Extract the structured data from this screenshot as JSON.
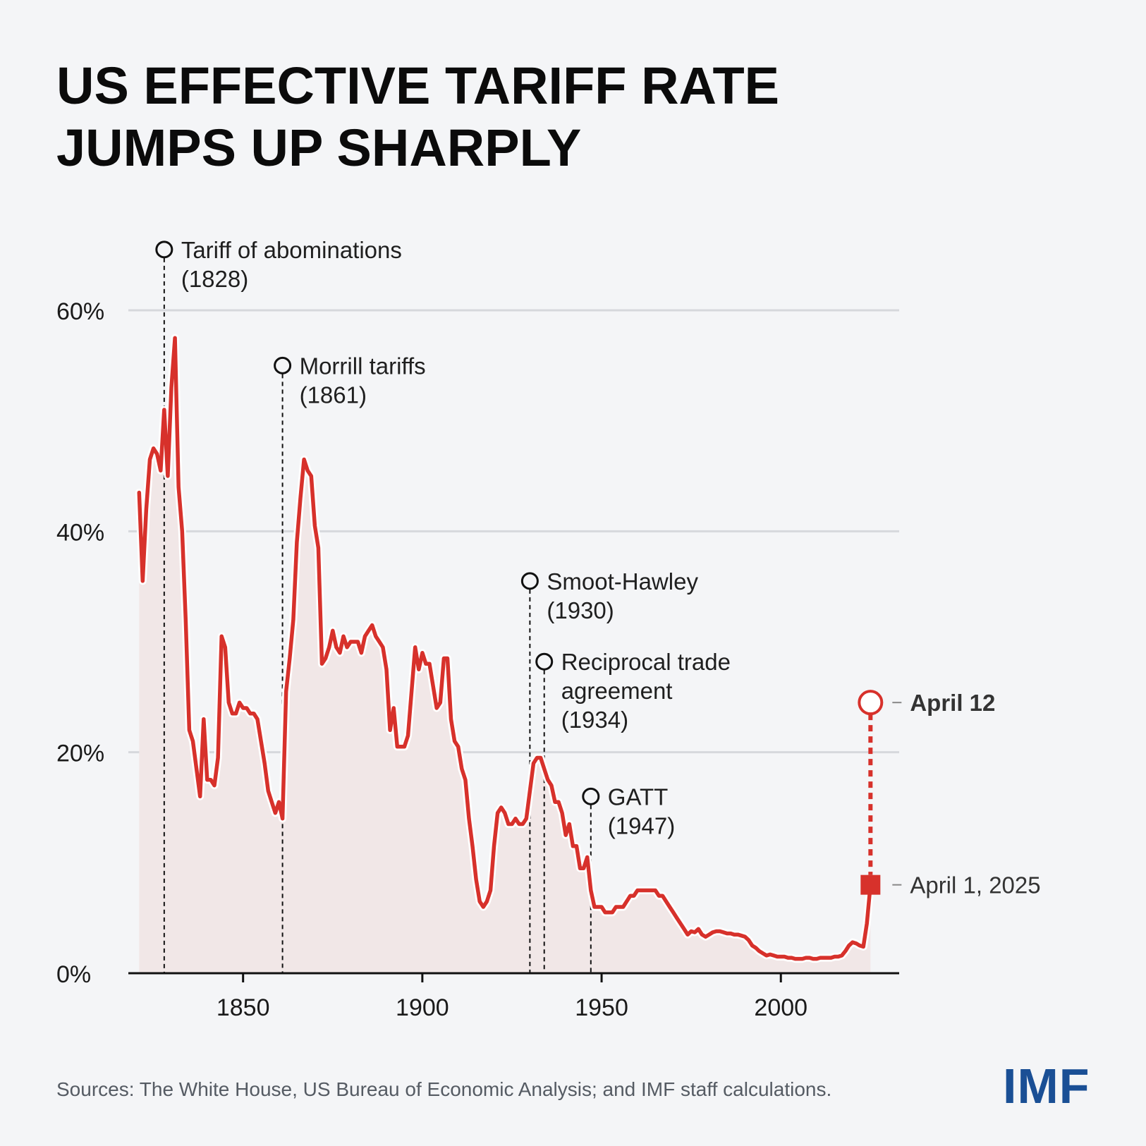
{
  "title_lines": [
    "US EFFECTIVE TARIFF RATE",
    "JUMPS UP SHARPLY"
  ],
  "source": "Sources: The White House, US Bureau of Economic Analysis; and IMF staff calculations.",
  "logo": "IMF",
  "colors": {
    "line": "#d7312b",
    "fill": "#f1e7e7",
    "grid": "#d6d8dc",
    "axis": "#111111",
    "logo": "#1a4f95"
  },
  "chart_data": {
    "type": "line",
    "title": "US EFFECTIVE TARIFF RATE JUMPS UP SHARPLY",
    "xlabel": "",
    "ylabel": "",
    "xlim": [
      1818,
      2033
    ],
    "ylim": [
      0,
      60
    ],
    "x_ticks": [
      1850,
      1900,
      1950,
      2000
    ],
    "y_ticks": [
      0,
      20,
      40,
      60
    ],
    "y_tick_labels": [
      "0%",
      "20%",
      "40%",
      "60%"
    ],
    "series": [
      {
        "name": "US effective tariff rate (%)",
        "points": [
          [
            1821,
            43.5
          ],
          [
            1822,
            35.5
          ],
          [
            1823,
            42.0
          ],
          [
            1824,
            46.5
          ],
          [
            1825,
            47.5
          ],
          [
            1826,
            47.0
          ],
          [
            1827,
            45.5
          ],
          [
            1828,
            51.0
          ],
          [
            1829,
            45.0
          ],
          [
            1830,
            53.0
          ],
          [
            1831,
            57.5
          ],
          [
            1832,
            44.0
          ],
          [
            1833,
            40.0
          ],
          [
            1834,
            32.0
          ],
          [
            1835,
            22.0
          ],
          [
            1836,
            21.0
          ],
          [
            1837,
            18.5
          ],
          [
            1838,
            16.0
          ],
          [
            1839,
            23.0
          ],
          [
            1840,
            17.5
          ],
          [
            1841,
            17.5
          ],
          [
            1842,
            17.0
          ],
          [
            1843,
            19.5
          ],
          [
            1844,
            30.5
          ],
          [
            1845,
            29.5
          ],
          [
            1846,
            24.5
          ],
          [
            1847,
            23.5
          ],
          [
            1848,
            23.5
          ],
          [
            1849,
            24.5
          ],
          [
            1850,
            24.0
          ],
          [
            1851,
            24.0
          ],
          [
            1852,
            23.5
          ],
          [
            1853,
            23.5
          ],
          [
            1854,
            23.0
          ],
          [
            1855,
            21.0
          ],
          [
            1856,
            19.0
          ],
          [
            1857,
            16.5
          ],
          [
            1858,
            15.5
          ],
          [
            1859,
            14.5
          ],
          [
            1860,
            15.5
          ],
          [
            1861,
            14.0
          ],
          [
            1862,
            25.5
          ],
          [
            1863,
            28.5
          ],
          [
            1864,
            32.0
          ],
          [
            1865,
            39.0
          ],
          [
            1866,
            43.0
          ],
          [
            1867,
            46.5
          ],
          [
            1868,
            45.5
          ],
          [
            1869,
            45.0
          ],
          [
            1870,
            40.5
          ],
          [
            1871,
            38.5
          ],
          [
            1872,
            28.0
          ],
          [
            1873,
            28.5
          ],
          [
            1874,
            29.5
          ],
          [
            1875,
            31.0
          ],
          [
            1876,
            29.5
          ],
          [
            1877,
            29.0
          ],
          [
            1878,
            30.5
          ],
          [
            1879,
            29.5
          ],
          [
            1880,
            30.0
          ],
          [
            1881,
            30.0
          ],
          [
            1882,
            30.0
          ],
          [
            1883,
            29.0
          ],
          [
            1884,
            30.5
          ],
          [
            1885,
            31.0
          ],
          [
            1886,
            31.5
          ],
          [
            1887,
            30.5
          ],
          [
            1888,
            30.0
          ],
          [
            1889,
            29.5
          ],
          [
            1890,
            27.5
          ],
          [
            1891,
            22.0
          ],
          [
            1892,
            24.0
          ],
          [
            1893,
            20.5
          ],
          [
            1894,
            20.5
          ],
          [
            1895,
            20.5
          ],
          [
            1896,
            21.5
          ],
          [
            1897,
            25.5
          ],
          [
            1898,
            29.5
          ],
          [
            1899,
            27.5
          ],
          [
            1900,
            29.0
          ],
          [
            1901,
            28.0
          ],
          [
            1902,
            28.0
          ],
          [
            1903,
            26.0
          ],
          [
            1904,
            24.0
          ],
          [
            1905,
            24.5
          ],
          [
            1906,
            28.5
          ],
          [
            1907,
            28.5
          ],
          [
            1908,
            23.0
          ],
          [
            1909,
            21.0
          ],
          [
            1910,
            20.5
          ],
          [
            1911,
            18.5
          ],
          [
            1912,
            17.5
          ],
          [
            1913,
            14.0
          ],
          [
            1914,
            11.5
          ],
          [
            1915,
            8.5
          ],
          [
            1916,
            6.5
          ],
          [
            1917,
            6.0
          ],
          [
            1918,
            6.5
          ],
          [
            1919,
            7.5
          ],
          [
            1920,
            11.5
          ],
          [
            1921,
            14.5
          ],
          [
            1922,
            15.0
          ],
          [
            1923,
            14.5
          ],
          [
            1924,
            13.5
          ],
          [
            1925,
            13.5
          ],
          [
            1926,
            14.0
          ],
          [
            1927,
            13.5
          ],
          [
            1928,
            13.5
          ],
          [
            1929,
            14.0
          ],
          [
            1930,
            16.5
          ],
          [
            1931,
            19.0
          ],
          [
            1932,
            19.5
          ],
          [
            1933,
            19.5
          ],
          [
            1934,
            18.5
          ],
          [
            1935,
            17.5
          ],
          [
            1936,
            17.0
          ],
          [
            1937,
            15.5
          ],
          [
            1938,
            15.5
          ],
          [
            1939,
            14.5
          ],
          [
            1940,
            12.5
          ],
          [
            1941,
            13.5
          ],
          [
            1942,
            11.5
          ],
          [
            1943,
            11.5
          ],
          [
            1944,
            9.5
          ],
          [
            1945,
            9.5
          ],
          [
            1946,
            10.5
          ],
          [
            1947,
            7.5
          ],
          [
            1948,
            6.0
          ],
          [
            1949,
            6.0
          ],
          [
            1950,
            6.0
          ],
          [
            1951,
            5.5
          ],
          [
            1952,
            5.5
          ],
          [
            1953,
            5.5
          ],
          [
            1954,
            6.0
          ],
          [
            1955,
            6.0
          ],
          [
            1956,
            6.0
          ],
          [
            1957,
            6.5
          ],
          [
            1958,
            7.0
          ],
          [
            1959,
            7.0
          ],
          [
            1960,
            7.5
          ],
          [
            1961,
            7.5
          ],
          [
            1962,
            7.5
          ],
          [
            1963,
            7.5
          ],
          [
            1964,
            7.5
          ],
          [
            1965,
            7.5
          ],
          [
            1966,
            7.0
          ],
          [
            1967,
            7.0
          ],
          [
            1968,
            6.5
          ],
          [
            1969,
            6.0
          ],
          [
            1970,
            5.5
          ],
          [
            1971,
            5.0
          ],
          [
            1972,
            4.5
          ],
          [
            1973,
            4.0
          ],
          [
            1974,
            3.5
          ],
          [
            1975,
            3.8
          ],
          [
            1976,
            3.7
          ],
          [
            1977,
            4.0
          ],
          [
            1978,
            3.5
          ],
          [
            1979,
            3.3
          ],
          [
            1980,
            3.5
          ],
          [
            1981,
            3.7
          ],
          [
            1982,
            3.8
          ],
          [
            1983,
            3.8
          ],
          [
            1984,
            3.7
          ],
          [
            1985,
            3.6
          ],
          [
            1986,
            3.6
          ],
          [
            1987,
            3.5
          ],
          [
            1988,
            3.5
          ],
          [
            1989,
            3.4
          ],
          [
            1990,
            3.3
          ],
          [
            1991,
            3.0
          ],
          [
            1992,
            2.5
          ],
          [
            1993,
            2.3
          ],
          [
            1994,
            2.0
          ],
          [
            1995,
            1.8
          ],
          [
            1996,
            1.6
          ],
          [
            1997,
            1.7
          ],
          [
            1998,
            1.6
          ],
          [
            1999,
            1.5
          ],
          [
            2000,
            1.5
          ],
          [
            2001,
            1.5
          ],
          [
            2002,
            1.4
          ],
          [
            2003,
            1.4
          ],
          [
            2004,
            1.3
          ],
          [
            2005,
            1.3
          ],
          [
            2006,
            1.3
          ],
          [
            2007,
            1.4
          ],
          [
            2008,
            1.4
          ],
          [
            2009,
            1.3
          ],
          [
            2010,
            1.3
          ],
          [
            2011,
            1.4
          ],
          [
            2012,
            1.4
          ],
          [
            2013,
            1.4
          ],
          [
            2014,
            1.4
          ],
          [
            2015,
            1.5
          ],
          [
            2016,
            1.5
          ],
          [
            2017,
            1.6
          ],
          [
            2018,
            2.0
          ],
          [
            2019,
            2.5
          ],
          [
            2020,
            2.8
          ],
          [
            2021,
            2.7
          ],
          [
            2022,
            2.5
          ],
          [
            2023,
            2.4
          ],
          [
            2024,
            4.5
          ],
          [
            2025,
            8.0
          ]
        ]
      }
    ],
    "annotations": [
      {
        "year": 1828,
        "top": 65.5,
        "label_lines": [
          "Tariff of abominations",
          "(1828)"
        ]
      },
      {
        "year": 1861,
        "top": 55.0,
        "label_lines": [
          "Morrill tariffs",
          "(1861)"
        ]
      },
      {
        "year": 1930,
        "top": 35.5,
        "label_lines": [
          "Smoot-Hawley",
          "(1930)"
        ]
      },
      {
        "year": 1934,
        "top": 28.2,
        "label_lines": [
          "Reciprocal trade",
          "agreement",
          "(1934)"
        ]
      },
      {
        "year": 1947,
        "top": 16.0,
        "label_lines": [
          "GATT",
          "(1947)"
        ]
      }
    ],
    "highlights": [
      {
        "label": "April 1, 2025",
        "year": 2025,
        "value": 8.0,
        "marker": "square"
      },
      {
        "label": "April 12",
        "year": 2025,
        "value": 24.5,
        "marker": "circle"
      }
    ]
  }
}
